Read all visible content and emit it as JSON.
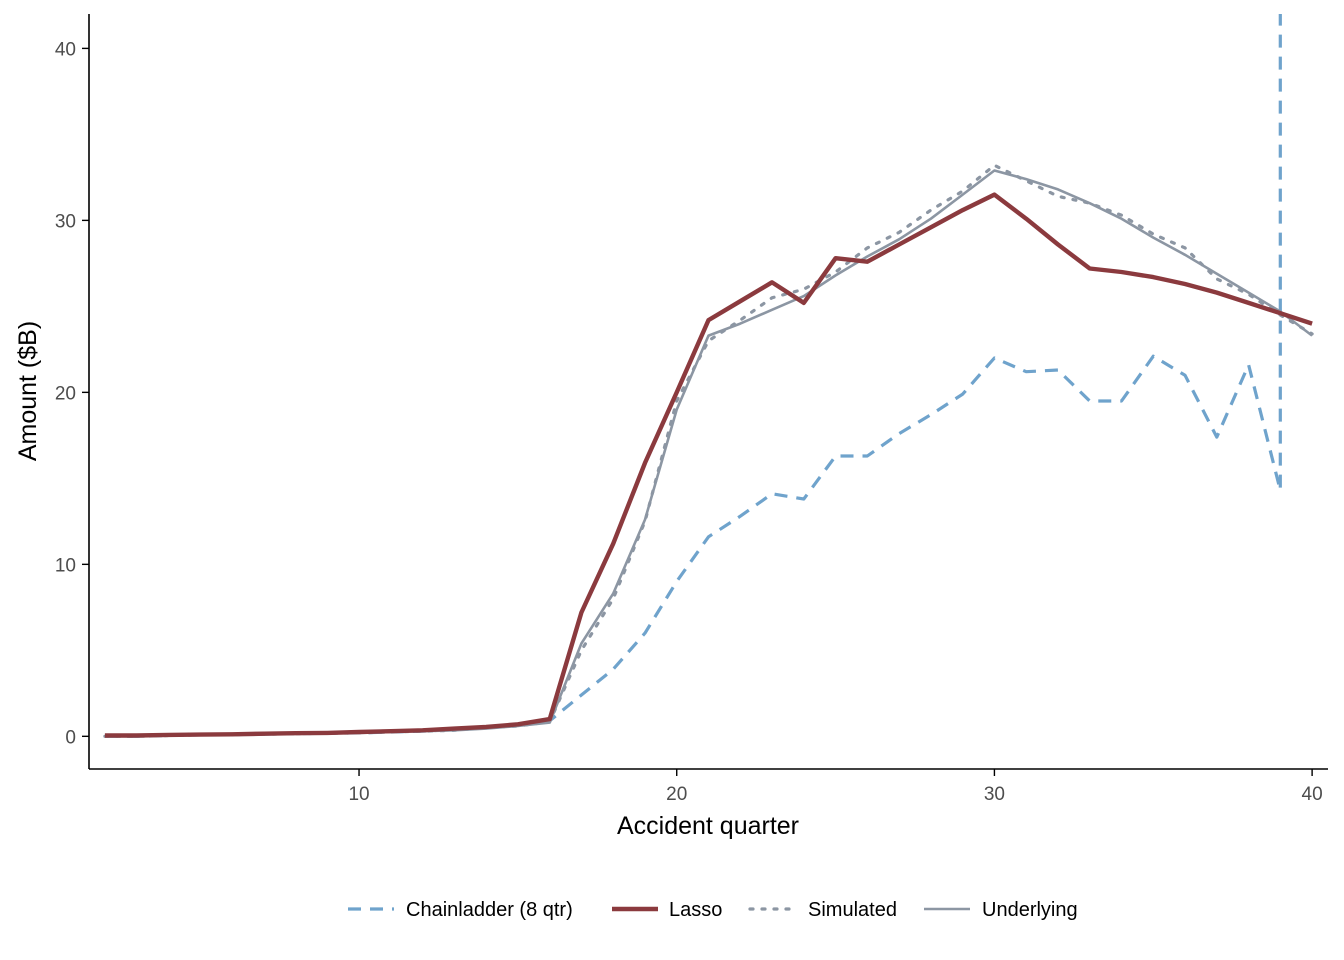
{
  "chart_data": {
    "type": "line",
    "title": "",
    "xlabel": "Accident quarter",
    "ylabel": "Amount ($B)",
    "xlim": [
      1.5,
      40.5
    ],
    "ylim": [
      -1.9,
      42
    ],
    "xticks": [
      10,
      20,
      30,
      40
    ],
    "yticks": [
      0,
      10,
      20,
      30,
      40
    ],
    "grid": false,
    "legend_position": "bottom",
    "series": [
      {
        "name": "Chainladder (8 qtr)",
        "color": "#6fa3cc",
        "style": "dashed",
        "x": [
          2,
          3,
          4,
          5,
          6,
          7,
          8,
          9,
          10,
          11,
          12,
          13,
          14,
          15,
          16,
          17,
          18,
          19,
          20,
          21,
          22,
          23,
          24,
          25,
          26,
          27,
          28,
          29,
          30,
          31,
          32,
          33,
          34,
          35,
          36,
          37,
          38,
          39,
          39,
          39
        ],
        "y": [
          0,
          0,
          0.05,
          0.08,
          0.1,
          0.13,
          0.15,
          0.18,
          0.2,
          0.25,
          0.3,
          0.4,
          0.5,
          0.7,
          0.9,
          2.4,
          3.9,
          6.0,
          9.0,
          11.6,
          12.8,
          14.1,
          13.8,
          16.3,
          16.3,
          17.6,
          18.7,
          19.9,
          22.0,
          21.2,
          21.3,
          19.5,
          19.5,
          22.1,
          21.0,
          17.4,
          21.6,
          14.3,
          14.3,
          42
        ]
      },
      {
        "name": "Lasso",
        "color": "#8b3a3e",
        "style": "solid",
        "x": [
          2,
          3,
          4,
          5,
          6,
          7,
          8,
          9,
          10,
          11,
          12,
          13,
          14,
          15,
          16,
          17,
          18,
          19,
          20,
          21,
          22,
          23,
          24,
          25,
          26,
          27,
          28,
          29,
          30,
          31,
          32,
          33,
          34,
          35,
          36,
          37,
          38,
          39,
          40
        ],
        "y": [
          0.05,
          0.05,
          0.08,
          0.1,
          0.12,
          0.15,
          0.18,
          0.2,
          0.25,
          0.3,
          0.35,
          0.45,
          0.55,
          0.7,
          1.0,
          7.2,
          11.2,
          15.9,
          20.0,
          24.2,
          25.3,
          26.4,
          25.2,
          27.8,
          27.6,
          28.6,
          29.6,
          30.6,
          31.5,
          30.1,
          28.6,
          27.2,
          27.0,
          26.7,
          26.3,
          25.8,
          25.2,
          24.6,
          24.0
        ]
      },
      {
        "name": "Simulated",
        "color": "#8c96a3",
        "style": "dotted",
        "x": [
          2,
          3,
          4,
          5,
          6,
          7,
          8,
          9,
          10,
          11,
          12,
          13,
          14,
          15,
          16,
          17,
          18,
          19,
          20,
          21,
          22,
          23,
          24,
          25,
          26,
          27,
          28,
          29,
          30,
          31,
          32,
          33,
          34,
          35,
          36,
          37,
          38,
          39,
          40
        ],
        "y": [
          0,
          0,
          0.05,
          0.08,
          0.1,
          0.12,
          0.15,
          0.18,
          0.2,
          0.25,
          0.3,
          0.35,
          0.5,
          0.6,
          0.85,
          5.0,
          8.0,
          12.5,
          19.5,
          23.0,
          24.2,
          25.5,
          26.0,
          27.0,
          28.4,
          29.3,
          30.6,
          31.7,
          33.2,
          32.3,
          31.4,
          31.0,
          30.3,
          29.2,
          28.4,
          26.6,
          25.7,
          24.5,
          23.4
        ]
      },
      {
        "name": "Underlying",
        "color": "#8c96a3",
        "style": "solid",
        "x": [
          2,
          3,
          4,
          5,
          6,
          7,
          8,
          9,
          10,
          11,
          12,
          13,
          14,
          15,
          16,
          17,
          18,
          19,
          20,
          21,
          22,
          23,
          24,
          25,
          26,
          27,
          28,
          29,
          30,
          31,
          32,
          33,
          34,
          35,
          36,
          37,
          38,
          39,
          40
        ],
        "y": [
          0,
          0,
          0.05,
          0.08,
          0.1,
          0.12,
          0.15,
          0.18,
          0.2,
          0.25,
          0.3,
          0.35,
          0.45,
          0.6,
          0.8,
          5.4,
          8.3,
          12.6,
          19.0,
          23.3,
          24.0,
          24.8,
          25.6,
          26.8,
          27.9,
          28.9,
          30.1,
          31.5,
          32.9,
          32.4,
          31.8,
          31.0,
          30.1,
          29.0,
          28.0,
          26.9,
          25.8,
          24.7,
          23.3
        ]
      }
    ]
  }
}
